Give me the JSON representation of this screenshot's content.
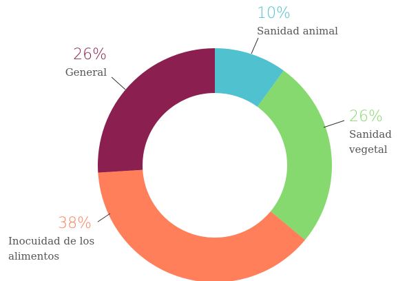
{
  "chart_data": {
    "type": "donut",
    "categories": [
      "Sanidad animal",
      "Sanidad vegetal",
      "Inocuidad de los alimentos",
      "General"
    ],
    "values": [
      10,
      26,
      38,
      26
    ],
    "value_labels": [
      "10%",
      "26%",
      "38%",
      "26%"
    ],
    "colors": [
      "#4fc1cf",
      "#86d96f",
      "#ff7f5a",
      "#8b1f4f"
    ]
  }
}
